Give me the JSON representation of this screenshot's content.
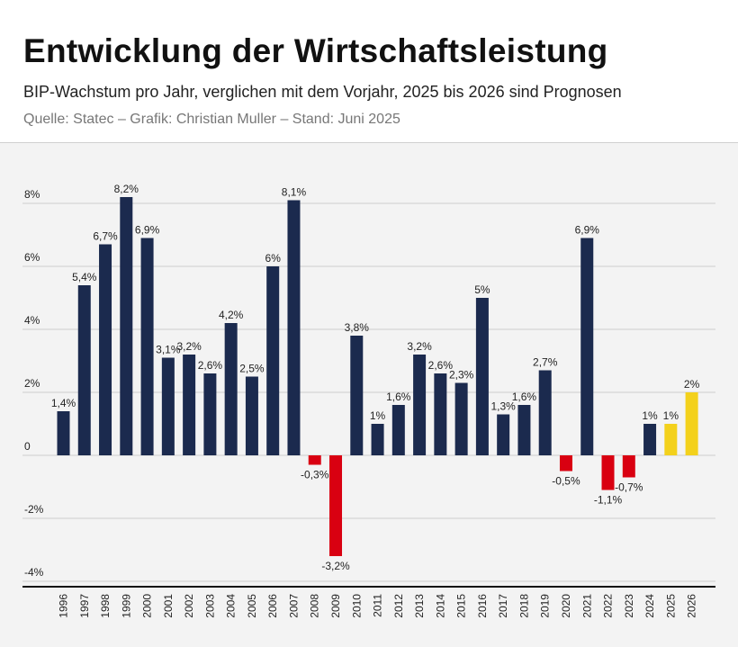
{
  "header": {
    "title": "Entwicklung der Wirtschaftsleistung",
    "subtitle": "BIP-Wachstum pro Jahr, verglichen mit dem Vorjahr, 2025 bis 2026 sind Prognosen",
    "source": "Quelle: Statec – Grafik: Christian Muller – Stand: Juni 2025"
  },
  "chart_data": {
    "type": "bar",
    "categories": [
      "1996",
      "1997",
      "1998",
      "1999",
      "2000",
      "2001",
      "2002",
      "2003",
      "2004",
      "2005",
      "2006",
      "2007",
      "2008",
      "2009",
      "2010",
      "2011",
      "2012",
      "2013",
      "2014",
      "2015",
      "2016",
      "2017",
      "2018",
      "2019",
      "2020",
      "2021",
      "2022",
      "2023",
      "2024",
      "2025",
      "2026"
    ],
    "values": [
      1.4,
      5.4,
      6.7,
      8.2,
      6.9,
      3.1,
      3.2,
      2.6,
      4.2,
      2.5,
      6,
      8.1,
      -0.3,
      -3.2,
      3.8,
      1,
      1.6,
      3.2,
      2.6,
      2.3,
      5,
      1.3,
      1.6,
      2.7,
      -0.5,
      6.9,
      -1.1,
      -0.7,
      1,
      1,
      2
    ],
    "data_labels": [
      "1,4%",
      "5,4%",
      "6,7%",
      "8,2%",
      "6,9%",
      "3,1%",
      "3,2%",
      "2,6%",
      "4,2%",
      "2,5%",
      "6%",
      "8,1%",
      "-0,3%",
      "-3,2%",
      "3,8%",
      "1%",
      "1,6%",
      "3,2%",
      "2,6%",
      "2,3%",
      "5%",
      "1,3%",
      "1,6%",
      "2,7%",
      "-0,5%",
      "6,9%",
      "-1,1%",
      "-0,7%",
      "1%",
      "1%",
      "2%"
    ],
    "forecast": [
      "2025",
      "2026"
    ],
    "yticks": [
      8,
      6,
      4,
      2,
      0,
      -2,
      -4
    ],
    "ytick_labels": [
      "8%",
      "6%",
      "4%",
      "2%",
      "0",
      "-2%",
      "-4%"
    ],
    "ylim": [
      -4,
      8
    ],
    "grid": true,
    "colors": {
      "positive": "#1b2a4e",
      "negative": "#d90011",
      "forecast": "#f3d11c"
    }
  }
}
